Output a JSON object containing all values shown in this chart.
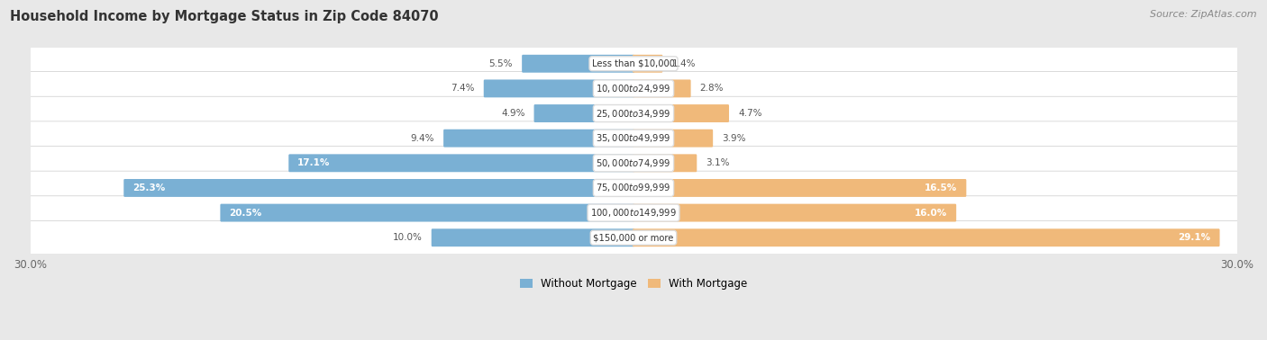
{
  "title": "Household Income by Mortgage Status in Zip Code 84070",
  "source": "Source: ZipAtlas.com",
  "categories": [
    "Less than $10,000",
    "$10,000 to $24,999",
    "$25,000 to $34,999",
    "$35,000 to $49,999",
    "$50,000 to $74,999",
    "$75,000 to $99,999",
    "$100,000 to $149,999",
    "$150,000 or more"
  ],
  "without_mortgage": [
    5.5,
    7.4,
    4.9,
    9.4,
    17.1,
    25.3,
    20.5,
    10.0
  ],
  "with_mortgage": [
    1.4,
    2.8,
    4.7,
    3.9,
    3.1,
    16.5,
    16.0,
    29.1
  ],
  "color_without": "#7ab0d4",
  "color_with": "#f0b97a",
  "bg_color": "#e8e8e8",
  "axis_limit": 30.0,
  "legend_labels": [
    "Without Mortgage",
    "With Mortgage"
  ]
}
